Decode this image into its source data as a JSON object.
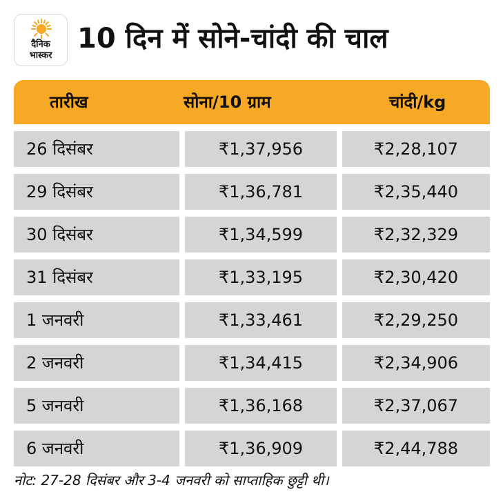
{
  "brand": {
    "line1": "दैनिक",
    "line2": "भास्कर"
  },
  "title": "10 दिन में सोने-चांदी की चाल",
  "table": {
    "headers": {
      "date": "तारीख",
      "gold": "सोना/10 ग्राम",
      "silver": "चांदी/kg"
    },
    "rows": [
      {
        "date": "26 दिसंबर",
        "gold": "₹1,37,956",
        "silver": "₹2,28,107"
      },
      {
        "date": "29 दिसंबर",
        "gold": "₹1,36,781",
        "silver": "₹2,35,440"
      },
      {
        "date": "30 दिसंबर",
        "gold": "₹1,34,599",
        "silver": "₹2,32,329"
      },
      {
        "date": "31 दिसंबर",
        "gold": "₹1,33,195",
        "silver": "₹2,30,420"
      },
      {
        "date": "1 जनवरी",
        "gold": "₹1,33,461",
        "silver": "₹2,29,250"
      },
      {
        "date": "2 जनवरी",
        "gold": "₹1,34,415",
        "silver": "₹2,34,906"
      },
      {
        "date": "5 जनवरी",
        "gold": "₹1,36,168",
        "silver": "₹2,37,067"
      },
      {
        "date": "6 जनवरी",
        "gold": "₹1,36,909",
        "silver": "₹2,44,788"
      }
    ]
  },
  "note": "नोट: 27-28 दिसंबर और 3-4 जनवरी को साप्ताहिक छुट्टी थी।",
  "colors": {
    "header": "#f7a825",
    "cell": "#d5d5d7",
    "logo_sun": "#f7a825"
  }
}
